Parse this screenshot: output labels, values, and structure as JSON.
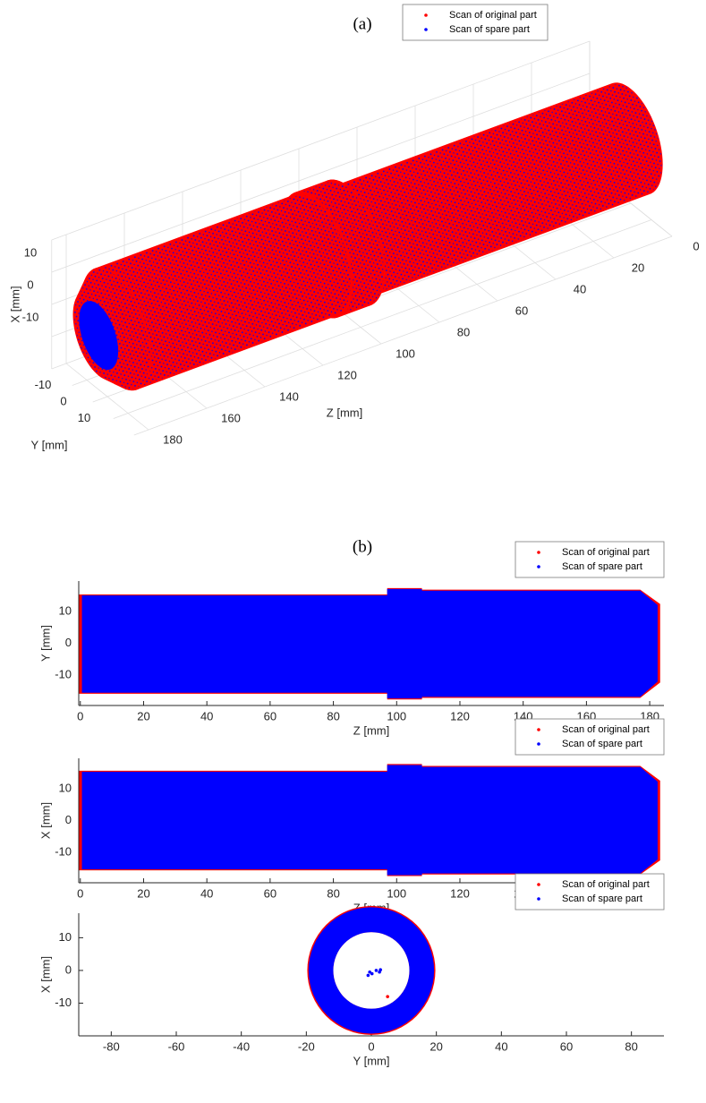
{
  "chart_data": [
    {
      "type": "scatter3d",
      "title": "(a)",
      "zlabel": "Z [mm]",
      "xlabel": "X [mm]",
      "ylabel": "Y [mm]",
      "zlim": [
        0,
        185
      ],
      "zticks": [
        0,
        20,
        40,
        60,
        80,
        100,
        120,
        140,
        160,
        180
      ],
      "xlim": [
        -20,
        20
      ],
      "xticks": [
        -10,
        0,
        10
      ],
      "ylim": [
        -20,
        20
      ],
      "yticks": [
        -10,
        0,
        10
      ],
      "grid": true,
      "legend": "top",
      "series": [
        {
          "name": "Scan of original part",
          "color": "#ff0000",
          "x": [
            0,
            97,
            97,
            108,
            108,
            177,
            183
          ],
          "values": [
            15.5,
            15.5,
            17.5,
            17.5,
            17,
            17,
            12.5
          ]
        },
        {
          "name": "Scan of spare part",
          "color": "#0000ff",
          "x": [
            0,
            97,
            97,
            108,
            108,
            177,
            183
          ],
          "values": [
            15,
            15,
            17,
            17,
            16.5,
            16.5,
            12
          ],
          "face_radius": 9.5
        }
      ]
    },
    {
      "type": "band",
      "title": "(b)",
      "xlabel": "Z [mm]",
      "ylabel": "Y [mm]",
      "xlim": [
        -0.5,
        184.5
      ],
      "xticks": [
        0,
        20,
        40,
        60,
        80,
        100,
        120,
        140,
        160,
        180
      ],
      "ylim": [
        -19.5,
        19.5
      ],
      "yticks": [
        -10,
        0,
        10
      ],
      "legend": "top-right",
      "series": [
        {
          "name": "Scan of original part",
          "color": "#ff0000",
          "x": [
            -0.4,
            97,
            97,
            108,
            108,
            177,
            183.3
          ],
          "values": [
            15.3,
            15.3,
            17.3,
            17.3,
            16.8,
            16.8,
            12.3
          ],
          "lower": [
            -15.8,
            -15.8,
            -17.6,
            -17.6,
            -17.1,
            -17.1,
            -12.3
          ]
        },
        {
          "name": "Scan of spare part",
          "color": "#0000ff",
          "x": [
            0.5,
            97,
            97,
            108,
            108,
            177,
            182.5
          ],
          "values": [
            15,
            15,
            17,
            17,
            16.5,
            16.5,
            12
          ],
          "lower": [
            -15.5,
            -15.5,
            -17.3,
            -17.3,
            -16.8,
            -16.8,
            -12
          ]
        }
      ]
    },
    {
      "type": "band",
      "xlabel": "Z [mm]",
      "ylabel": "X [mm]",
      "xlim": [
        -0.5,
        184.5
      ],
      "xticks": [
        0,
        20,
        40,
        60,
        80,
        100,
        120,
        140,
        160,
        180
      ],
      "ylim": [
        -19.5,
        19.5
      ],
      "yticks": [
        -10,
        0,
        10
      ],
      "legend": "top-right",
      "series": [
        {
          "name": "Scan of original part",
          "color": "#ff0000",
          "x": [
            -0.4,
            97,
            97,
            108,
            108,
            177,
            183.3
          ],
          "values": [
            15.6,
            15.6,
            17.7,
            17.7,
            17.1,
            17.1,
            12.5
          ],
          "lower": [
            -15.6,
            -15.6,
            -17.4,
            -17.4,
            -16.9,
            -16.9,
            -12.5
          ]
        },
        {
          "name": "Scan of spare part",
          "color": "#0000ff",
          "x": [
            0.5,
            97,
            97,
            108,
            108,
            177,
            182.5
          ],
          "values": [
            15.3,
            15.3,
            17.4,
            17.4,
            16.8,
            16.8,
            12.2
          ],
          "lower": [
            -15.3,
            -15.3,
            -17.1,
            -17.1,
            -16.6,
            -16.6,
            -12.2
          ]
        }
      ]
    },
    {
      "type": "rings",
      "xlabel": "Y [mm]",
      "ylabel": "X [mm]",
      "xlim": [
        -90,
        90
      ],
      "xticks": [
        -80,
        -60,
        -40,
        -20,
        0,
        20,
        40,
        60,
        80
      ],
      "ylim": [
        -20,
        17.5
      ],
      "yticks": [
        -10,
        0,
        10
      ],
      "legend": "top-right",
      "series": [
        {
          "name": "Scan of original part",
          "color": "#ff0000",
          "radius": 19.7,
          "x": [
            5
          ],
          "values": [
            -8
          ]
        },
        {
          "name": "Scan of spare part",
          "color": "#0000ff",
          "radius": 19.3,
          "inner_radius": 11.7,
          "x": [
            -1,
            -0.5,
            0.2,
            1.5,
            2.5,
            2.8
          ],
          "values": [
            -1.5,
            -0.5,
            -1,
            0,
            -0.5,
            0.2
          ]
        }
      ]
    }
  ]
}
